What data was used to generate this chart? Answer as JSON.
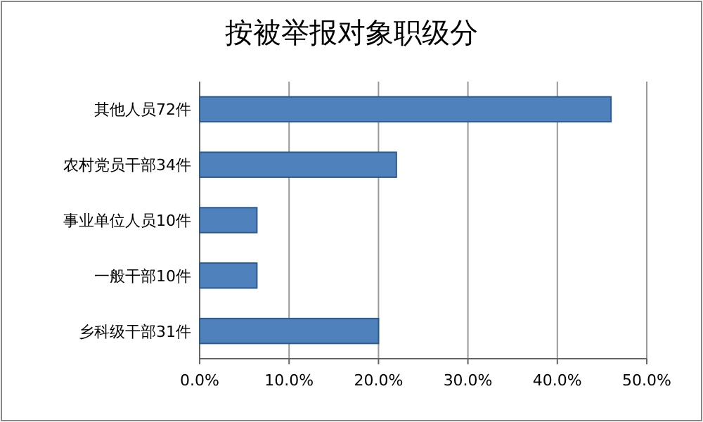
{
  "chart_data": {
    "type": "bar",
    "orientation": "horizontal",
    "title": "按被举报对象职级分",
    "categories": [
      "其他人员72件",
      "农村党员干部34件",
      "事业单位人员10件",
      "一般干部10件",
      "乡科级干部31件"
    ],
    "values": [
      46,
      22,
      6.4,
      6.4,
      20
    ],
    "color": "#4f81bd",
    "xlim": [
      0,
      50
    ],
    "xticks": [
      {
        "value": 0,
        "label": "0.0%"
      },
      {
        "value": 10,
        "label": "10.0%"
      },
      {
        "value": 20,
        "label": "20.0%"
      },
      {
        "value": 30,
        "label": "30.0%"
      },
      {
        "value": 40,
        "label": "40.0%"
      },
      {
        "value": 50,
        "label": "50.0%"
      }
    ],
    "grid": "x"
  }
}
